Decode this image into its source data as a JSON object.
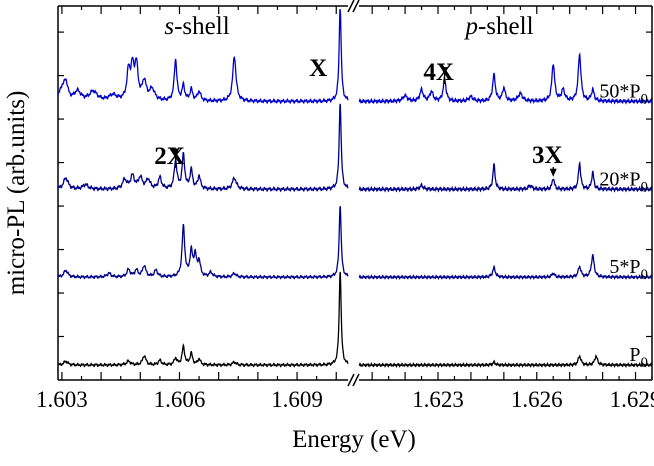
{
  "chart_data": {
    "type": "line",
    "title": "",
    "xlabel": "Energy (eV)",
    "ylabel": "micro-PL (arb.units)",
    "broken_x_axis": true,
    "panels": [
      {
        "title": "s-shell",
        "title_italic_part": "s",
        "title_rest": "-shell",
        "xlim": [
          1.6029,
          1.6103
        ],
        "ticks": [
          "1.603",
          "1.606",
          "1.609"
        ],
        "tick_values": [
          1.603,
          1.606,
          1.609
        ]
      },
      {
        "title": "p-shell",
        "title_italic_part": "p",
        "title_rest": "-shell",
        "xlim": [
          1.6206,
          1.6295
        ],
        "ticks": [
          "1.623",
          "1.626",
          "1.629"
        ],
        "tick_values": [
          1.623,
          1.626,
          1.629
        ]
      }
    ],
    "y_ticks": 8,
    "series": [
      {
        "label_main": "P",
        "label_sub": "0",
        "color": "#000000",
        "baseline": 0.04,
        "noise": 0.004,
        "peaks": [
          {
            "x": 1.6031,
            "h": 0.01,
            "w": 6e-05
          },
          {
            "x": 1.6047,
            "h": 0.01,
            "w": 6e-05
          },
          {
            "x": 1.6051,
            "h": 0.025,
            "w": 5e-05
          },
          {
            "x": 1.6055,
            "h": 0.012,
            "w": 5e-05
          },
          {
            "x": 1.6059,
            "h": 0.018,
            "w": 4e-05
          },
          {
            "x": 1.6061,
            "h": 0.048,
            "w": 4e-05
          },
          {
            "x": 1.6063,
            "h": 0.03,
            "w": 4e-05
          },
          {
            "x": 1.6065,
            "h": 0.016,
            "w": 4e-05
          },
          {
            "x": 1.6074,
            "h": 0.008,
            "w": 5e-05
          },
          {
            "x": 1.6101,
            "h": 0.255,
            "w": 3e-05
          },
          {
            "x": 1.6247,
            "h": 0.007,
            "w": 5e-05
          },
          {
            "x": 1.6273,
            "h": 0.024,
            "w": 5e-05
          },
          {
            "x": 1.6278,
            "h": 0.024,
            "w": 5e-05
          }
        ]
      },
      {
        "label_main": "5*P",
        "label_sub": "0",
        "color": "#00008b",
        "baseline": 0.275,
        "noise": 0.004,
        "peaks": [
          {
            "x": 1.6031,
            "h": 0.018,
            "w": 6e-05
          },
          {
            "x": 1.6042,
            "h": 0.01,
            "w": 6e-05
          },
          {
            "x": 1.6047,
            "h": 0.02,
            "w": 5e-05
          },
          {
            "x": 1.6049,
            "h": 0.018,
            "w": 5e-05
          },
          {
            "x": 1.6051,
            "h": 0.03,
            "w": 5e-05
          },
          {
            "x": 1.6054,
            "h": 0.018,
            "w": 5e-05
          },
          {
            "x": 1.6061,
            "h": 0.135,
            "w": 4e-05
          },
          {
            "x": 1.6063,
            "h": 0.065,
            "w": 4e-05
          },
          {
            "x": 1.6064,
            "h": 0.055,
            "w": 4e-05
          },
          {
            "x": 1.6065,
            "h": 0.04,
            "w": 4e-05
          },
          {
            "x": 1.6068,
            "h": 0.012,
            "w": 5e-05
          },
          {
            "x": 1.6074,
            "h": 0.01,
            "w": 5e-05
          },
          {
            "x": 1.6101,
            "h": 0.195,
            "w": 3e-05
          },
          {
            "x": 1.6247,
            "h": 0.025,
            "w": 5e-05
          },
          {
            "x": 1.6265,
            "h": 0.01,
            "w": 5e-05
          },
          {
            "x": 1.6273,
            "h": 0.028,
            "w": 5e-05
          },
          {
            "x": 1.6277,
            "h": 0.058,
            "w": 5e-05
          }
        ]
      },
      {
        "label_main": "20*P",
        "label_sub": "0",
        "color": "#00008b",
        "baseline": 0.51,
        "noise": 0.005,
        "peaks": [
          {
            "x": 1.6031,
            "h": 0.03,
            "w": 7e-05
          },
          {
            "x": 1.6036,
            "h": 0.012,
            "w": 8e-05
          },
          {
            "x": 1.6046,
            "h": 0.025,
            "w": 6e-05
          },
          {
            "x": 1.6048,
            "h": 0.035,
            "w": 6e-05
          },
          {
            "x": 1.605,
            "h": 0.03,
            "w": 6e-05
          },
          {
            "x": 1.6052,
            "h": 0.025,
            "w": 6e-05
          },
          {
            "x": 1.6055,
            "h": 0.03,
            "w": 5e-05
          },
          {
            "x": 1.6059,
            "h": 0.075,
            "w": 4e-05
          },
          {
            "x": 1.6061,
            "h": 0.09,
            "w": 4e-05
          },
          {
            "x": 1.6063,
            "h": 0.05,
            "w": 4e-05
          },
          {
            "x": 1.6065,
            "h": 0.035,
            "w": 4e-05
          },
          {
            "x": 1.6074,
            "h": 0.03,
            "w": 6e-05
          },
          {
            "x": 1.6101,
            "h": 0.235,
            "w": 3e-05
          },
          {
            "x": 1.6225,
            "h": 0.01,
            "w": 6e-05
          },
          {
            "x": 1.6247,
            "h": 0.065,
            "w": 4e-05
          },
          {
            "x": 1.6258,
            "h": 0.01,
            "w": 6e-05
          },
          {
            "x": 1.6265,
            "h": 0.03,
            "w": 4e-05
          },
          {
            "x": 1.6273,
            "h": 0.07,
            "w": 4e-05
          },
          {
            "x": 1.6277,
            "h": 0.045,
            "w": 4e-05
          }
        ]
      },
      {
        "label_main": "50*P",
        "label_sub": "0",
        "color": "#0000cd",
        "baseline": 0.745,
        "noise": 0.005,
        "peaks": [
          {
            "x": 1.603,
            "h": 0.03,
            "w": 8e-05
          },
          {
            "x": 1.6031,
            "h": 0.045,
            "w": 6e-05
          },
          {
            "x": 1.6034,
            "h": 0.025,
            "w": 0.0001
          },
          {
            "x": 1.6038,
            "h": 0.025,
            "w": 0.00012
          },
          {
            "x": 1.6043,
            "h": 0.015,
            "w": 0.00012
          },
          {
            "x": 1.6047,
            "h": 0.075,
            "w": 5e-05
          },
          {
            "x": 1.6048,
            "h": 0.08,
            "w": 5e-05
          },
          {
            "x": 1.6049,
            "h": 0.09,
            "w": 5e-05
          },
          {
            "x": 1.6051,
            "h": 0.05,
            "w": 6e-05
          },
          {
            "x": 1.6053,
            "h": 0.03,
            "w": 8e-05
          },
          {
            "x": 1.6059,
            "h": 0.11,
            "w": 4e-05
          },
          {
            "x": 1.6061,
            "h": 0.04,
            "w": 4e-05
          },
          {
            "x": 1.6063,
            "h": 0.03,
            "w": 4e-05
          },
          {
            "x": 1.6065,
            "h": 0.025,
            "w": 5e-05
          },
          {
            "x": 1.6074,
            "h": 0.12,
            "w": 5e-05
          },
          {
            "x": 1.6101,
            "h": 0.26,
            "w": 3e-05
          },
          {
            "x": 1.622,
            "h": 0.015,
            "w": 8e-05
          },
          {
            "x": 1.6225,
            "h": 0.03,
            "w": 6e-05
          },
          {
            "x": 1.6228,
            "h": 0.025,
            "w": 6e-05
          },
          {
            "x": 1.6232,
            "h": 0.06,
            "w": 5e-05
          },
          {
            "x": 1.624,
            "h": 0.012,
            "w": 8e-05
          },
          {
            "x": 1.6247,
            "h": 0.07,
            "w": 5e-05
          },
          {
            "x": 1.625,
            "h": 0.035,
            "w": 5e-05
          },
          {
            "x": 1.6255,
            "h": 0.02,
            "w": 8e-05
          },
          {
            "x": 1.6265,
            "h": 0.1,
            "w": 5e-05
          },
          {
            "x": 1.6268,
            "h": 0.03,
            "w": 6e-05
          },
          {
            "x": 1.6273,
            "h": 0.125,
            "w": 5e-05
          },
          {
            "x": 1.6277,
            "h": 0.03,
            "w": 5e-05
          }
        ]
      }
    ],
    "annotations": [
      {
        "text": "X",
        "x": 1.6101
      },
      {
        "text": "2X",
        "x": 1.6059,
        "arrow": true
      },
      {
        "text": "4X",
        "x": 1.6232,
        "arrow": true
      },
      {
        "text": "3X",
        "x": 1.6265,
        "arrow": true
      }
    ]
  }
}
